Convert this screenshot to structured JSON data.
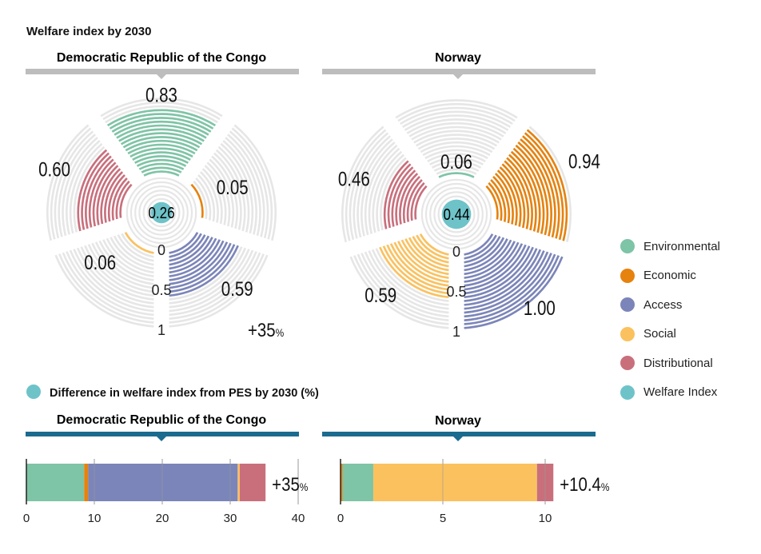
{
  "title": "Welfare index by 2030",
  "section2_title": "Difference in welfare index from PES by 2030 (%)",
  "colors": {
    "Environmental": "#7ec4a6",
    "Economic": "#e6820e",
    "Access": "#7b85b9",
    "Social": "#fbc15e",
    "Distributional": "#c96f7c",
    "Welfare Index": "#6ec3c9",
    "ring": "#e6e6e6",
    "header_gray": "#bdbdbd",
    "header_blue": "#1b6b8f"
  },
  "legend": [
    "Environmental",
    "Economic",
    "Access",
    "Social",
    "Distributional",
    "Welfare Index"
  ],
  "chart_data": [
    {
      "type": "radial-bar",
      "title": "Democratic Republic of the Congo",
      "categories": [
        "Environmental",
        "Economic",
        "Access",
        "Social",
        "Distributional"
      ],
      "values": [
        0.83,
        0.05,
        0.59,
        0.06,
        0.6
      ],
      "value_labels": [
        "0.83",
        "0.05",
        "0.59",
        "0.06",
        "0.60"
      ],
      "welfare_index": 0.26,
      "welfare_label": "0.26",
      "scale_ticks": [
        "0",
        "0.5",
        "1"
      ],
      "range": [
        0,
        1
      ],
      "change_label": "+35",
      "change_unit": "%"
    },
    {
      "type": "radial-bar",
      "title": "Norway",
      "categories": [
        "Environmental",
        "Economic",
        "Access",
        "Social",
        "Distributional"
      ],
      "values": [
        0.06,
        0.94,
        1.0,
        0.59,
        0.46
      ],
      "value_labels": [
        "0.06",
        "0.94",
        "1.00",
        "0.59",
        "0.46"
      ],
      "welfare_index": 0.44,
      "welfare_label": "0.44",
      "scale_ticks": [
        "0",
        "0.5",
        "1"
      ],
      "range": [
        0,
        1
      ]
    },
    {
      "type": "bar",
      "stacked": true,
      "orientation": "horizontal",
      "title": "Democratic Republic of the Congo",
      "series": [
        {
          "name": "Environmental",
          "values": [
            8.5
          ]
        },
        {
          "name": "Economic",
          "values": [
            0.6
          ]
        },
        {
          "name": "Access",
          "values": [
            22.0
          ]
        },
        {
          "name": "Social",
          "values": [
            0.3
          ]
        },
        {
          "name": "Distributional",
          "values": [
            3.8
          ]
        }
      ],
      "xlim": [
        0,
        40
      ],
      "xticks": [
        0,
        10,
        20,
        30,
        40
      ],
      "grid": true,
      "total_label": "+35",
      "total_unit": "%"
    },
    {
      "type": "bar",
      "stacked": true,
      "orientation": "horizontal",
      "title": "Norway",
      "series": [
        {
          "name": "Economic",
          "values": [
            0.1
          ]
        },
        {
          "name": "Environmental",
          "values": [
            1.5
          ]
        },
        {
          "name": "Social",
          "values": [
            8.0
          ]
        },
        {
          "name": "Distributional",
          "values": [
            0.8
          ]
        }
      ],
      "xlim": [
        0,
        10.4
      ],
      "xticks": [
        0,
        5,
        10
      ],
      "grid": true,
      "total_label": "+10.4",
      "total_unit": "%"
    }
  ]
}
